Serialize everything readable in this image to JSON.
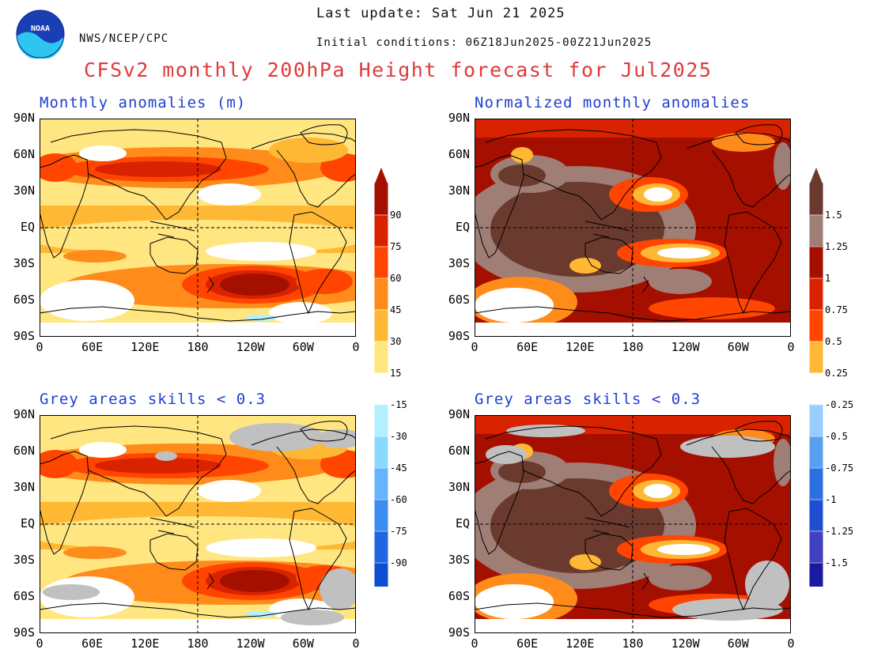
{
  "header": {
    "agency": "NWS/NCEP/CPC",
    "last_update": "Last update: Sat Jun 21 2025",
    "initial_conditions": "Initial conditions: 06Z18Jun2025-00Z21Jun2025",
    "title": "CFSv2 monthly 200hPa Height forecast for Jul2025",
    "logo_text": "NOAA"
  },
  "panels": {
    "top_left": {
      "title": "Monthly anomalies (m)"
    },
    "top_right": {
      "title": "Normalized monthly anomalies"
    },
    "bottom_left": {
      "title": "Grey areas skills < 0.3"
    },
    "bottom_right": {
      "title": "Grey areas skills < 0.3"
    }
  },
  "axes": {
    "lat_ticks": [
      "90N",
      "60N",
      "30N",
      "EQ",
      "30S",
      "60S",
      "90S"
    ],
    "lon_ticks": [
      "0",
      "60E",
      "120E",
      "180",
      "120W",
      "60W",
      "0"
    ]
  },
  "colorbar_left": {
    "labels": [
      "90",
      "75",
      "60",
      "45",
      "30",
      "15",
      "-15",
      "-30",
      "-45",
      "-60",
      "-75",
      "-90"
    ],
    "colors": [
      "#a50f00",
      "#d92200",
      "#ff4500",
      "#ff8c1a",
      "#ffb833",
      "#ffe680",
      "#ffffff",
      "#b3f0ff",
      "#8cd9ff",
      "#66b3ff",
      "#3d8cf0",
      "#1f66e0",
      "#0a4fd0"
    ]
  },
  "colorbar_right": {
    "labels": [
      "1.5",
      "1.25",
      "1",
      "0.75",
      "0.5",
      "0.25",
      "-0.25",
      "-0.5",
      "-0.75",
      "-1",
      "-1.25",
      "-1.5"
    ],
    "colors": [
      "#6b3a2e",
      "#9e7e75",
      "#a50f00",
      "#d92200",
      "#ff4500",
      "#ffb833",
      "#ffffff",
      "#99ccff",
      "#5aa0f0",
      "#2a70e0",
      "#1f4fd0",
      "#4040c0",
      "#1a1aa0"
    ]
  },
  "colors": {
    "title_red": "#e03a3a",
    "panel_title_blue": "#1f3fd0",
    "skill_grey": "#c0c0c0"
  }
}
